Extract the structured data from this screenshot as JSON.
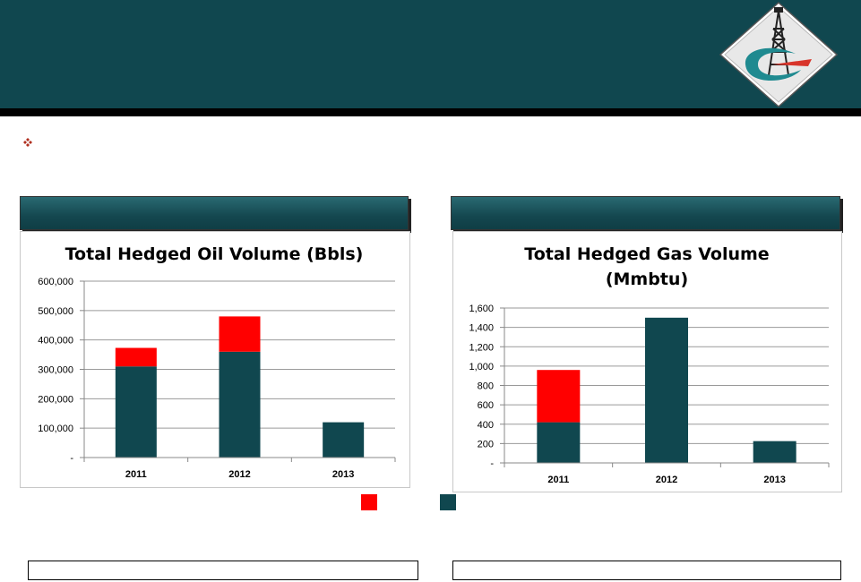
{
  "colors": {
    "header": "#10474f",
    "hedged_dark": "#10474f",
    "hedged_red": "#ff0000",
    "grid": "#9a9a9a"
  },
  "icons": {
    "bullet": "four-diamond-bullet-icon",
    "logo": "oil-derrick-logo"
  },
  "chart_data": [
    {
      "type": "bar",
      "stacked": true,
      "title": "Total Hedged Oil Volume (Bbls)",
      "categories": [
        "2011",
        "2012",
        "2013"
      ],
      "series": [
        {
          "color": "#10474f",
          "values": [
            310000,
            360000,
            120000
          ]
        },
        {
          "color": "#ff0000",
          "values": [
            63000,
            120000,
            0
          ]
        }
      ],
      "ylim": [
        0,
        600000
      ],
      "yticks": [
        0,
        100000,
        200000,
        300000,
        400000,
        500000,
        600000
      ],
      "ytick_labels": [
        "-",
        "100,000",
        "200,000",
        "300,000",
        "400,000",
        "500,000",
        "600,000"
      ],
      "grid": true
    },
    {
      "type": "bar",
      "stacked": true,
      "title": "Total Hedged Gas Volume (Mmbtu)",
      "title_lines": [
        "Total Hedged Gas Volume",
        "(Mmbtu)"
      ],
      "categories": [
        "2011",
        "2012",
        "2013"
      ],
      "series": [
        {
          "color": "#10474f",
          "values": [
            420,
            1500,
            225
          ]
        },
        {
          "color": "#ff0000",
          "values": [
            540,
            0,
            0
          ]
        }
      ],
      "ylim": [
        0,
        1600
      ],
      "yticks": [
        0,
        200,
        400,
        600,
        800,
        1000,
        1200,
        1400,
        1600
      ],
      "ytick_labels": [
        "-",
        "200",
        "400",
        "600",
        "800",
        "1,000",
        "1,200",
        "1,400",
        "1,600"
      ],
      "grid": true
    }
  ]
}
